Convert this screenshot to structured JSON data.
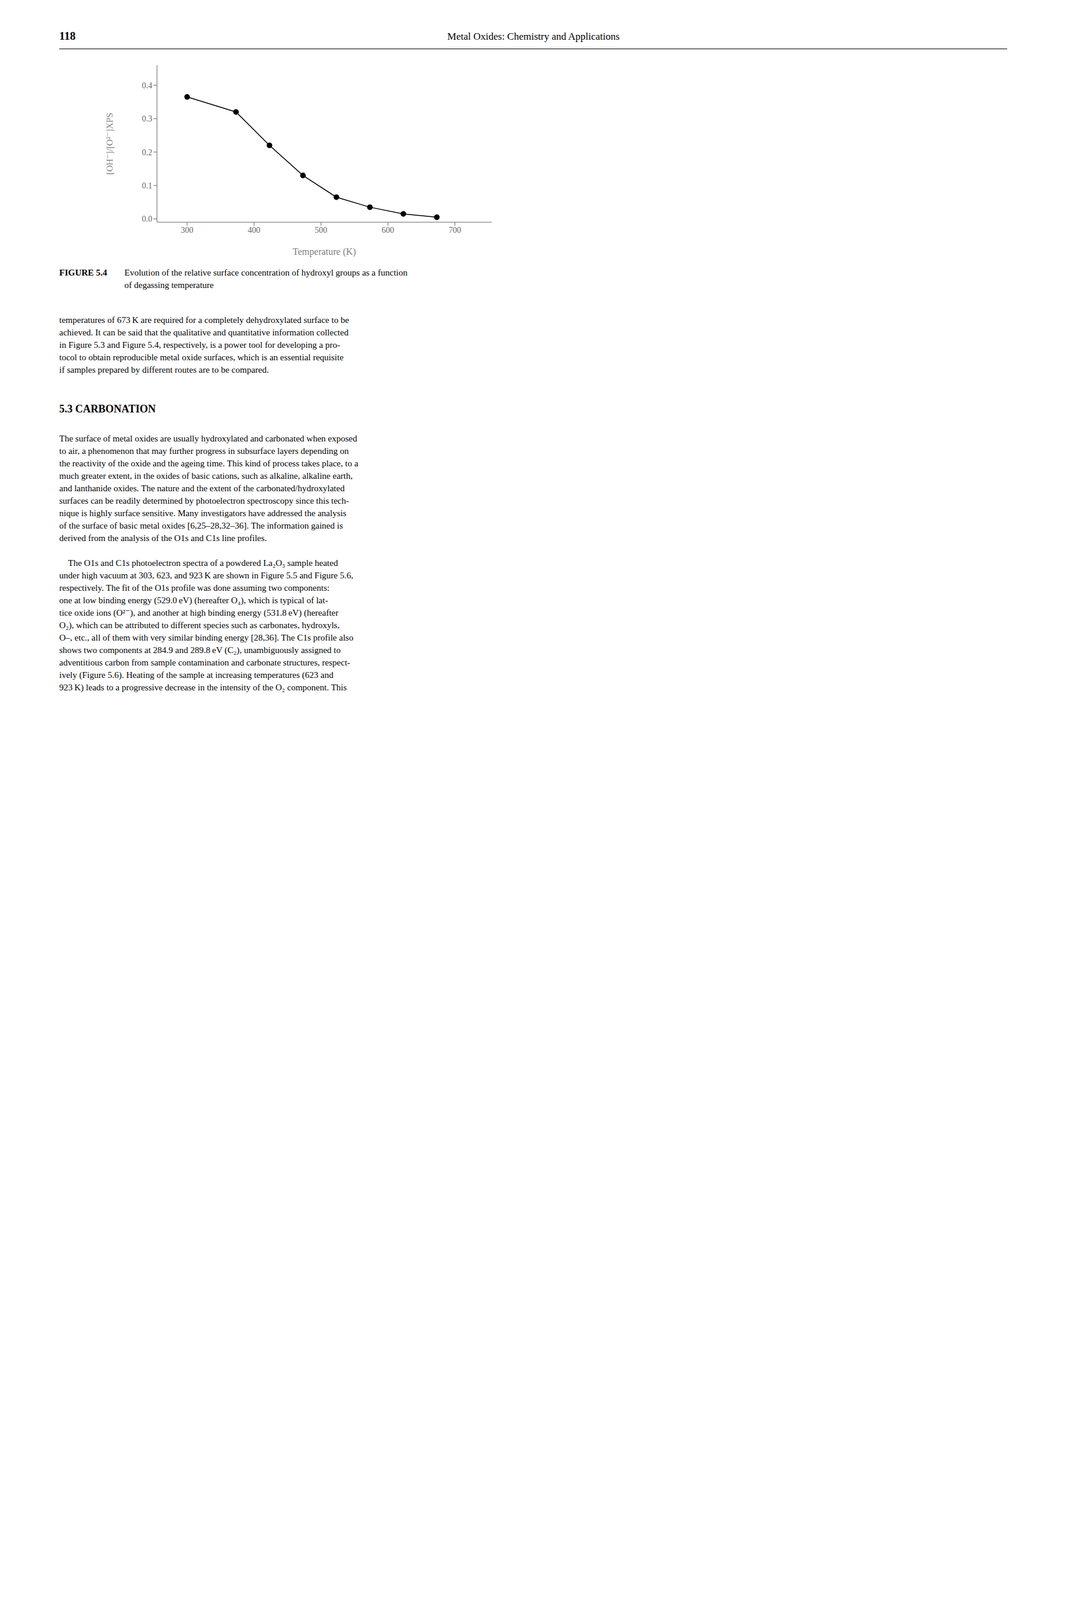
{
  "chart_data": {
    "type": "line",
    "xlabel": "Temperature (K)",
    "ylabel": "[OH⁻]/[O²⁻]XPS",
    "x": [
      300,
      373,
      423,
      473,
      523,
      573,
      623,
      673
    ],
    "values": [
      0.365,
      0.32,
      0.22,
      0.13,
      0.065,
      0.035,
      0.015,
      0.005
    ],
    "color": "#000000",
    "marker": "circle",
    "line_style": "solid",
    "grid": false,
    "xlim": [
      255,
      755
    ],
    "ylim": [
      -0.01,
      0.46
    ],
    "xticks": [
      300,
      400,
      500,
      600,
      700
    ],
    "yticks": [
      {
        "value": 0.0,
        "label": "0.0"
      },
      0.1,
      0.2,
      0.3,
      0.4
    ],
    "annotations": [
      "118",
      "Metal Oxides: Chemistry and Applications",
      "FIGURE 5.4",
      "Evolution of the relative surface concentration of hydroxyl groups as a function\nof degassing temperature",
      "temperatures of 673 K are required for a completely dehydroxylated surface to be\nachieved. It can be said that the qualitative and quantitative information collected\nin Figure 5.3 and Figure 5.4, respectively, is a power tool for developing a pro-\ntocol to obtain reproducible metal oxide surfaces, which is an essential requisite\nif samples prepared by different routes are to be compared.",
      "5.3 CARBONATION",
      "The surface of metal oxides are usually hydroxylated and carbonated when exposed\nto air, a phenomenon that may further progress in subsurface layers depending on\nthe reactivity of the oxide and the ageing time. This kind of process takes place, to a\nmuch greater extent, in the oxides of basic cations, such as alkaline, alkaline earth,\nand lanthanide oxides. The nature and the extent of the carbonated/hydroxylated\nsurfaces can be readily determined by photoelectron spectroscopy since this tech-\nnique is highly surface sensitive. Many investigators have addressed the analysis\nof the surface of basic metal oxides [6,25–28,32–36]. The information gained is\nderived from the analysis of the O1s and C1s line profiles.",
      "    The O1s and C1s photoelectron spectra of a powdered La₂O₃ sample heated\nunder high vacuum at 303, 623, and 923 K are shown in Figure 5.5 and Figure 5.6,\nrespectively. The fit of the O1s profile was done assuming two components:\none at low binding energy (529.0 eV) (hereafter O₄), which is typical of lat-\ntice oxide ions (O²⁻), and another at high binding energy (531.8 eV) (hereafter\nO₂), which can be attributed to different species such as carbonates, hydroxyls,\nO–, etc., all of them with very similar binding energy [28,36]. The C1s profile also\nshows two components at 284.9 and 289.8 eV (C₂), unambiguously assigned to\nadventitious carbon from sample contamination and carbonate structures, respect-\nively (Figure 5.6). Heating of the sample at increasing temperatures (623 and\n923 K) leads to a progressive decrease in the intensity of the O₂ component. This"
    ]
  }
}
